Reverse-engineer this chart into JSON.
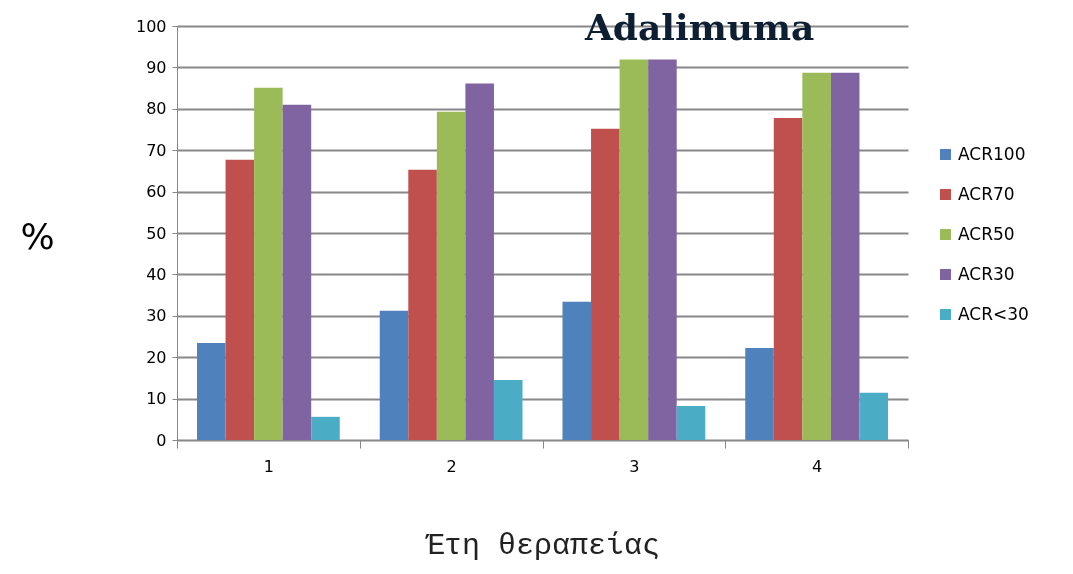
{
  "chart_data": {
    "type": "bar",
    "title": "Adalimuma",
    "xlabel": "Έτη θεραπείας",
    "ylabel": "%",
    "categories": [
      "1",
      "2",
      "3",
      "4"
    ],
    "series": [
      {
        "name": "ACR100",
        "color": "#4f81bd",
        "values": [
          23.4,
          31.2,
          33.4,
          22.2
        ]
      },
      {
        "name": "ACR70",
        "color": "#c0504d",
        "values": [
          67.7,
          65.3,
          75.2,
          77.8
        ]
      },
      {
        "name": "ACR50",
        "color": "#9bbb59",
        "values": [
          85.1,
          79.3,
          91.9,
          88.7
        ]
      },
      {
        "name": "ACR30",
        "color": "#8064a2",
        "values": [
          81.0,
          86.1,
          91.9,
          88.7
        ]
      },
      {
        "name": "ACR<30",
        "color": "#4bacc6",
        "values": [
          5.6,
          14.5,
          8.2,
          11.4
        ]
      }
    ],
    "ylim": [
      0,
      100
    ],
    "yticks": [
      0,
      10,
      20,
      30,
      40,
      50,
      60,
      70,
      80,
      90,
      100
    ],
    "grid": "y",
    "legend": "right"
  }
}
